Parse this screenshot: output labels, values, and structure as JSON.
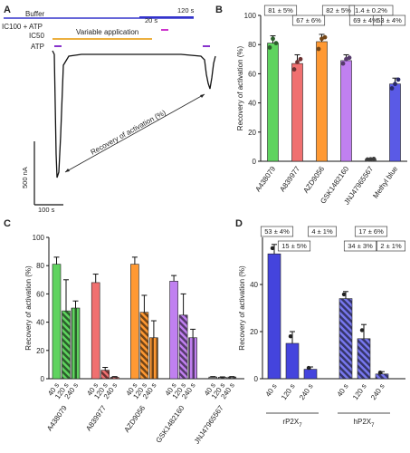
{
  "chart_data": [
    {
      "panel": "A",
      "type": "line",
      "legend": [
        {
          "label": "Buffer",
          "color": "#3333cc"
        },
        {
          "label": "IC100 + ATP",
          "color": "#cc33cc"
        },
        {
          "label": "IC50",
          "color": "#e69500"
        },
        {
          "label": "ATP",
          "color": "#8833cc"
        }
      ],
      "segment_labels": {
        "variable": "Variable application",
        "s20": "20 s",
        "s120": "120 s"
      },
      "annotation": "Recovery of activation (%)",
      "scale_y": "500 nA",
      "scale_x": "100 s"
    },
    {
      "panel": "B",
      "type": "bar",
      "ylabel": "Recovery of activation (%)",
      "ylim": [
        0,
        100
      ],
      "yticks": [
        0,
        20,
        40,
        60,
        80,
        100
      ],
      "categories": [
        "A438079",
        "A839977",
        "AZD9056",
        "GSK1482160",
        "JNJ47965567",
        "Methyl blue"
      ],
      "values": [
        81,
        67,
        82,
        69,
        1.4,
        53
      ],
      "errors": [
        5,
        6,
        5,
        4,
        0.2,
        4
      ],
      "labels": [
        "81 ± 5%",
        "67 ± 6%",
        "82 ± 5%",
        "69 ± 4%",
        "1.4 ± 0.2%",
        "53 ± 4%"
      ],
      "points": [
        [
          78,
          84,
          81
        ],
        [
          63,
          68,
          70
        ],
        [
          77,
          84,
          85
        ],
        [
          67,
          70,
          71
        ],
        [
          1.2,
          1.4,
          1.6
        ],
        [
          50,
          53,
          56
        ]
      ],
      "colors": [
        "#5fd35f",
        "#f07070",
        "#ff9933",
        "#c080f0",
        "#888888",
        "#5a5ae6"
      ]
    },
    {
      "panel": "C",
      "type": "bar",
      "ylabel": "Recovery of activation (%)",
      "ylim": [
        0,
        100
      ],
      "yticks": [
        0,
        20,
        40,
        60,
        80,
        100
      ],
      "subcategories": [
        "40 s",
        "120 s",
        "240 s"
      ],
      "groups": [
        {
          "name": "A438079",
          "color": "#5fd35f",
          "values": [
            81,
            48,
            50
          ],
          "errors": [
            5,
            22,
            5
          ]
        },
        {
          "name": "A839977",
          "color": "#f07070",
          "values": [
            68,
            6,
            1
          ],
          "errors": [
            6,
            2,
            0.5
          ]
        },
        {
          "name": "AZD9056",
          "color": "#ff9933",
          "values": [
            81,
            47,
            29
          ],
          "errors": [
            5,
            12,
            12
          ]
        },
        {
          "name": "GSK1482160",
          "color": "#c080f0",
          "values": [
            69,
            45,
            29
          ],
          "errors": [
            4,
            15,
            6
          ]
        },
        {
          "name": "JNJ47965567",
          "color": "#888888",
          "values": [
            1.2,
            1.0,
            1.2
          ],
          "errors": [
            0.3,
            0.3,
            0.3
          ]
        }
      ]
    },
    {
      "panel": "D",
      "type": "bar",
      "ylabel": "Recovery of activation (%)",
      "ylim": [
        0,
        60
      ],
      "yticks": [
        0,
        20,
        40
      ],
      "subcategories": [
        "40 s",
        "120 s",
        "240 s"
      ],
      "groups": [
        {
          "name": "rP2X",
          "sub": "7",
          "color": "#4444dd",
          "values": [
            53,
            15,
            4
          ],
          "errors": [
            4,
            5,
            1
          ],
          "labels": [
            "53 ± 4%",
            "15 ± 5%",
            "4 ± 1%"
          ]
        },
        {
          "name": "hP2X",
          "sub": "7",
          "color": "#7777ee",
          "values": [
            34,
            17,
            2
          ],
          "errors": [
            3,
            6,
            1
          ],
          "labels": [
            "34 ± 3%",
            "17 ± 6%",
            "2 ± 1%"
          ]
        }
      ]
    }
  ],
  "panels": [
    "A",
    "B",
    "C",
    "D"
  ]
}
